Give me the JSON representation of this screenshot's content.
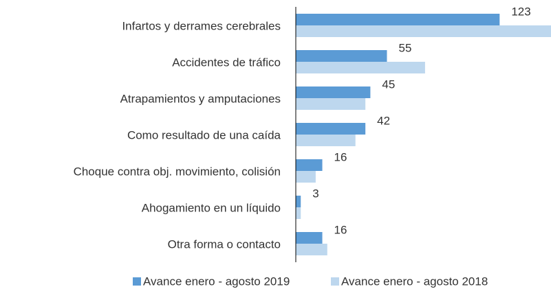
{
  "chart_data": {
    "type": "hbar",
    "categories": [
      "Infartos y derrames cerebrales",
      "Accidentes de tráfico",
      "Atrapamientos y amputaciones",
      "Como resultado de una caída",
      "Choque contra obj. movimiento, colisión",
      "Ahogamiento en un líquido",
      "Otra forma o contacto"
    ],
    "series": [
      {
        "name": "Avance enero - agosto 2019",
        "color": "#5b9bd5",
        "values": [
          123,
          55,
          45,
          42,
          16,
          3,
          16
        ],
        "labels": true
      },
      {
        "name": "Avance enero - agosto 2018",
        "color": "#bdd7ee",
        "values": [
          154,
          78,
          42,
          36,
          12,
          3,
          19
        ]
      }
    ]
  }
}
